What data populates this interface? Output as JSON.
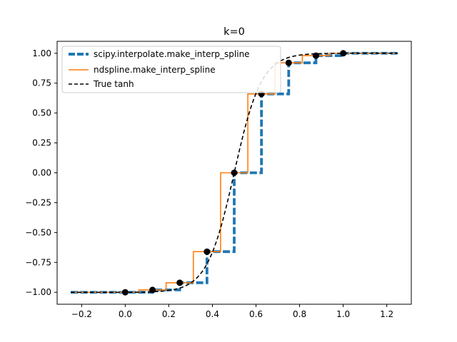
{
  "chart_data": {
    "type": "line",
    "title": "k=0",
    "xlabel": "",
    "ylabel": "",
    "xlim": [
      -0.3125,
      1.3125
    ],
    "ylim": [
      -1.0999,
      1.0999
    ],
    "xticks": [
      -0.2,
      0.0,
      0.2,
      0.4,
      0.6,
      0.8,
      1.0,
      1.2
    ],
    "xtick_labels": [
      "−0.2",
      "0.0",
      "0.2",
      "0.4",
      "0.6",
      "0.8",
      "1.0",
      "1.2"
    ],
    "yticks": [
      -1.0,
      -0.75,
      -0.5,
      -0.25,
      0.0,
      0.25,
      0.5,
      0.75,
      1.0
    ],
    "ytick_labels": [
      "−1.00",
      "−0.75",
      "−0.50",
      "−0.25",
      "0.00",
      "0.25",
      "0.50",
      "0.75",
      "1.00"
    ],
    "grid": false,
    "legend_position": "top-left",
    "series": [
      {
        "name": "scipy.interpolate.make_interp_spline",
        "style": "step-dashed",
        "color": "#1f77b4",
        "x": [
          -0.25,
          0.125,
          0.125,
          0.25,
          0.25,
          0.375,
          0.375,
          0.5,
          0.5,
          0.625,
          0.625,
          0.75,
          0.75,
          0.875,
          0.875,
          1.0,
          1.0,
          1.25
        ],
        "y": [
          -1.0,
          -1.0,
          -0.98,
          -0.98,
          -0.92,
          -0.92,
          -0.66,
          -0.66,
          0.0,
          0.0,
          0.66,
          0.66,
          0.92,
          0.92,
          0.98,
          0.98,
          1.0,
          1.0
        ]
      },
      {
        "name": "ndspline.make_interp_spline",
        "style": "step-solid",
        "color": "#ff7f0e",
        "x": [
          -0.25,
          0.0625,
          0.0625,
          0.1875,
          0.1875,
          0.3125,
          0.3125,
          0.4375,
          0.4375,
          0.5625,
          0.5625,
          0.6875,
          0.6875,
          0.8125,
          0.8125,
          0.9375,
          0.9375,
          1.25
        ],
        "y": [
          -1.0,
          -1.0,
          -0.98,
          -0.98,
          -0.92,
          -0.92,
          -0.66,
          -0.66,
          0.0,
          0.0,
          0.66,
          0.66,
          0.92,
          0.92,
          0.98,
          0.98,
          1.0,
          1.0
        ]
      },
      {
        "name": "True tanh",
        "style": "dashed",
        "color": "#000000",
        "function": "tanh(8*(x-0.5))/tanh(4)",
        "x_range": [
          -0.25,
          1.25
        ]
      },
      {
        "name": "",
        "style": "markers",
        "color": "#000000",
        "x": [
          0.0,
          0.125,
          0.25,
          0.375,
          0.5,
          0.625,
          0.75,
          0.875,
          1.0
        ],
        "y": [
          -1.0,
          -0.98,
          -0.92,
          -0.66,
          0.0,
          0.66,
          0.92,
          0.98,
          1.0
        ]
      }
    ]
  }
}
